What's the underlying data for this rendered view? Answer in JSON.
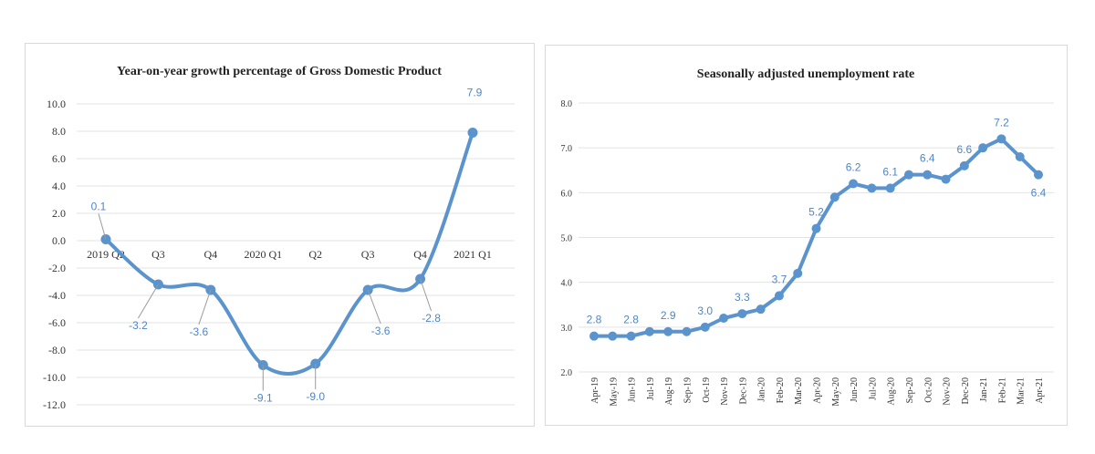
{
  "chart_data": [
    {
      "type": "line",
      "title": "Year-on-year growth percentage of Gross Domestic Product",
      "categories": [
        "2019 Q2",
        "Q3",
        "Q4",
        "2020 Q1",
        "Q2",
        "Q3",
        "Q4",
        "2021 Q1"
      ],
      "series": [
        {
          "values": [
            0.1,
            -3.2,
            -3.6,
            -9.1,
            -9.0,
            -3.6,
            -2.8,
            7.9
          ]
        }
      ],
      "data_labels": [
        "0.1",
        "-3.2",
        "-3.6",
        "-9.1",
        "-9.0",
        "-3.6",
        "-2.8",
        "7.9"
      ],
      "yticks": [
        "10.0",
        "8.0",
        "6.0",
        "4.0",
        "2.0",
        "0.0",
        "-2.0",
        "-4.0",
        "-6.0",
        "-8.0",
        "-10.0",
        "-12.0"
      ],
      "ylim": [
        -12,
        10
      ],
      "smooth": true,
      "grid": true,
      "color": "#5b93cd"
    },
    {
      "type": "line",
      "title": "Seasonally adjusted unemployment rate",
      "categories": [
        "Apr-19",
        "May-19",
        "Jun-19",
        "Jul-19",
        "Aug-19",
        "Sep-19",
        "Oct-19",
        "Nov-19",
        "Dec-19",
        "Jan-20",
        "Feb-20",
        "Mar-20",
        "Apr-20",
        "May-20",
        "Jun-20",
        "Jul-20",
        "Aug-20",
        "Sep-20",
        "Oct-20",
        "Nov-20",
        "Dec-20",
        "Jan-21",
        "Feb-21",
        "Mar-21",
        "Apr-21"
      ],
      "series": [
        {
          "values": [
            2.8,
            2.8,
            2.8,
            2.9,
            2.9,
            2.9,
            3.0,
            3.2,
            3.3,
            3.4,
            3.7,
            4.2,
            5.2,
            5.9,
            6.2,
            6.1,
            6.1,
            6.4,
            6.4,
            6.3,
            6.6,
            7.0,
            7.2,
            6.8,
            6.4
          ]
        }
      ],
      "data_labels": [
        {
          "index": 0,
          "text": "2.8"
        },
        {
          "index": 2,
          "text": "2.8"
        },
        {
          "index": 4,
          "text": "2.9"
        },
        {
          "index": 6,
          "text": "3.0"
        },
        {
          "index": 8,
          "text": "3.3"
        },
        {
          "index": 10,
          "text": "3.7"
        },
        {
          "index": 12,
          "text": "5.2"
        },
        {
          "index": 14,
          "text": "6.2"
        },
        {
          "index": 16,
          "text": "6.1"
        },
        {
          "index": 18,
          "text": "6.4"
        },
        {
          "index": 20,
          "text": "6.6"
        },
        {
          "index": 22,
          "text": "7.2"
        },
        {
          "index": 24,
          "text": "6.4"
        }
      ],
      "yticks": [
        "8.0",
        "7.0",
        "6.0",
        "5.0",
        "4.0",
        "3.0",
        "2.0"
      ],
      "ylim": [
        2,
        8
      ],
      "smooth": false,
      "grid": true,
      "color": "#5b93cd"
    }
  ]
}
